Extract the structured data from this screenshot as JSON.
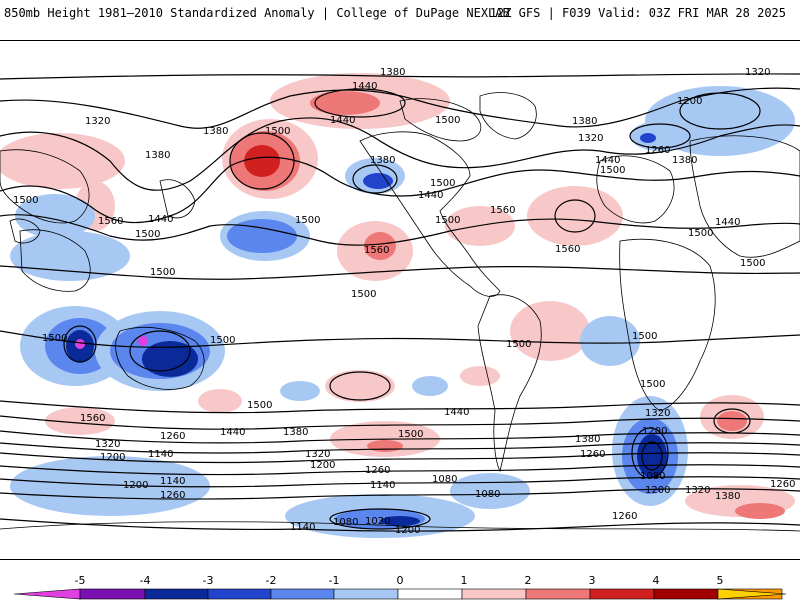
{
  "header": {
    "left_title": "850mb Height 1981–2010 Standardized Anomaly | College of DuPage NEXLAB",
    "right_title": "12Z GFS | F039 Valid: 03Z FRI MAR 28 2025"
  },
  "contour_labels": [
    "1380",
    "1440",
    "1320",
    "1500",
    "1380",
    "1440",
    "1320",
    "1380",
    "1500",
    "1500",
    "1200",
    "1380",
    "1440",
    "1380",
    "1320",
    "1380",
    "1260",
    "1500",
    "1440",
    "1560",
    "1440",
    "1500",
    "1500",
    "1560",
    "1500",
    "1560",
    "1500",
    "1500",
    "1560",
    "1440",
    "1500",
    "1500",
    "1500",
    "1500",
    "1500",
    "1500",
    "1500",
    "1500",
    "1560",
    "1500",
    "1440",
    "1440",
    "1500",
    "1380",
    "1320",
    "1260",
    "1200",
    "1140",
    "1320",
    "1260",
    "1200",
    "1080",
    "1140",
    "1200",
    "1260",
    "1080",
    "1140",
    "1080",
    "1020",
    "1200",
    "1140",
    "1380",
    "1260",
    "1200",
    "1080",
    "1200",
    "1320",
    "1380",
    "1260",
    "1260",
    "1320"
  ],
  "colorbar": {
    "labels": [
      "-5",
      "-4",
      "-3",
      "-2",
      "-1",
      "0",
      "1",
      "2",
      "3",
      "4",
      "5"
    ],
    "colors": [
      "#e040e0",
      "#7a10b0",
      "#0a2a9a",
      "#2244cc",
      "#5a86ee",
      "#a8c8f4",
      "#ffffff",
      "#f8c8c8",
      "#ee7878",
      "#d02020",
      "#a00000",
      "#ff9900",
      "#ffd000"
    ]
  }
}
